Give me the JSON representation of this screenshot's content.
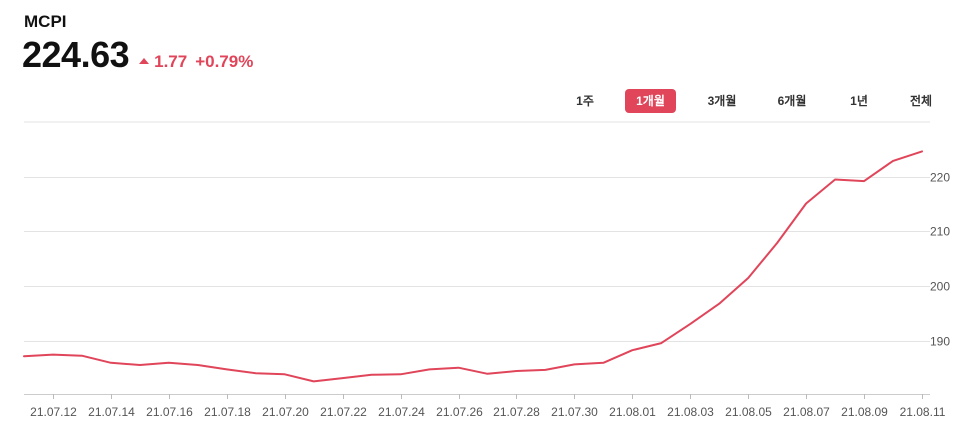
{
  "header": {
    "index_name": "MCPI",
    "price": "224.63",
    "change": "1.77",
    "change_pct": "+0.79%"
  },
  "range_tabs": [
    {
      "label": "1주",
      "active": false
    },
    {
      "label": "1개월",
      "active": true
    },
    {
      "label": "3개월",
      "active": false
    },
    {
      "label": "6개월",
      "active": false
    },
    {
      "label": "1년",
      "active": false
    },
    {
      "label": "전체",
      "active": false
    }
  ],
  "colors": {
    "line": "#e0455a",
    "up": "#e0455a",
    "active_tab": "#e0455a",
    "grid": "#e3e3e3",
    "tick_text": "#555555"
  },
  "chart_data": {
    "type": "line",
    "x": [
      "21.07.11",
      "21.07.12",
      "21.07.13",
      "21.07.14",
      "21.07.15",
      "21.07.16",
      "21.07.17",
      "21.07.18",
      "21.07.19",
      "21.07.20",
      "21.07.21",
      "21.07.22",
      "21.07.23",
      "21.07.24",
      "21.07.25",
      "21.07.26",
      "21.07.27",
      "21.07.28",
      "21.07.29",
      "21.07.30",
      "21.07.31",
      "21.08.01",
      "21.08.02",
      "21.08.03",
      "21.08.04",
      "21.08.05",
      "21.08.06",
      "21.08.07",
      "21.08.08",
      "21.08.09",
      "21.08.10",
      "21.08.11"
    ],
    "series": [
      {
        "values": [
          187.2,
          187.5,
          187.3,
          186.0,
          185.6,
          186.0,
          185.6,
          184.8,
          184.1,
          183.9,
          182.6,
          183.2,
          183.8,
          183.9,
          184.8,
          185.1,
          184.0,
          184.5,
          184.7,
          185.7,
          186.0,
          188.3,
          189.6,
          193.1,
          196.8,
          201.5,
          207.9,
          215.1,
          219.5,
          219.2,
          222.9,
          224.63
        ]
      }
    ],
    "x_tick_labels": [
      "21.07.12",
      "21.07.14",
      "21.07.16",
      "21.07.18",
      "21.07.20",
      "21.07.22",
      "21.07.24",
      "21.07.26",
      "21.07.28",
      "21.07.30",
      "21.08.01",
      "21.08.03",
      "21.08.05",
      "21.08.07",
      "21.08.09",
      "21.08.11"
    ],
    "y_ticks": [
      190,
      200,
      210,
      220
    ],
    "ylim": [
      180.3,
      230
    ],
    "y_axis_side": "right",
    "grid": true
  }
}
